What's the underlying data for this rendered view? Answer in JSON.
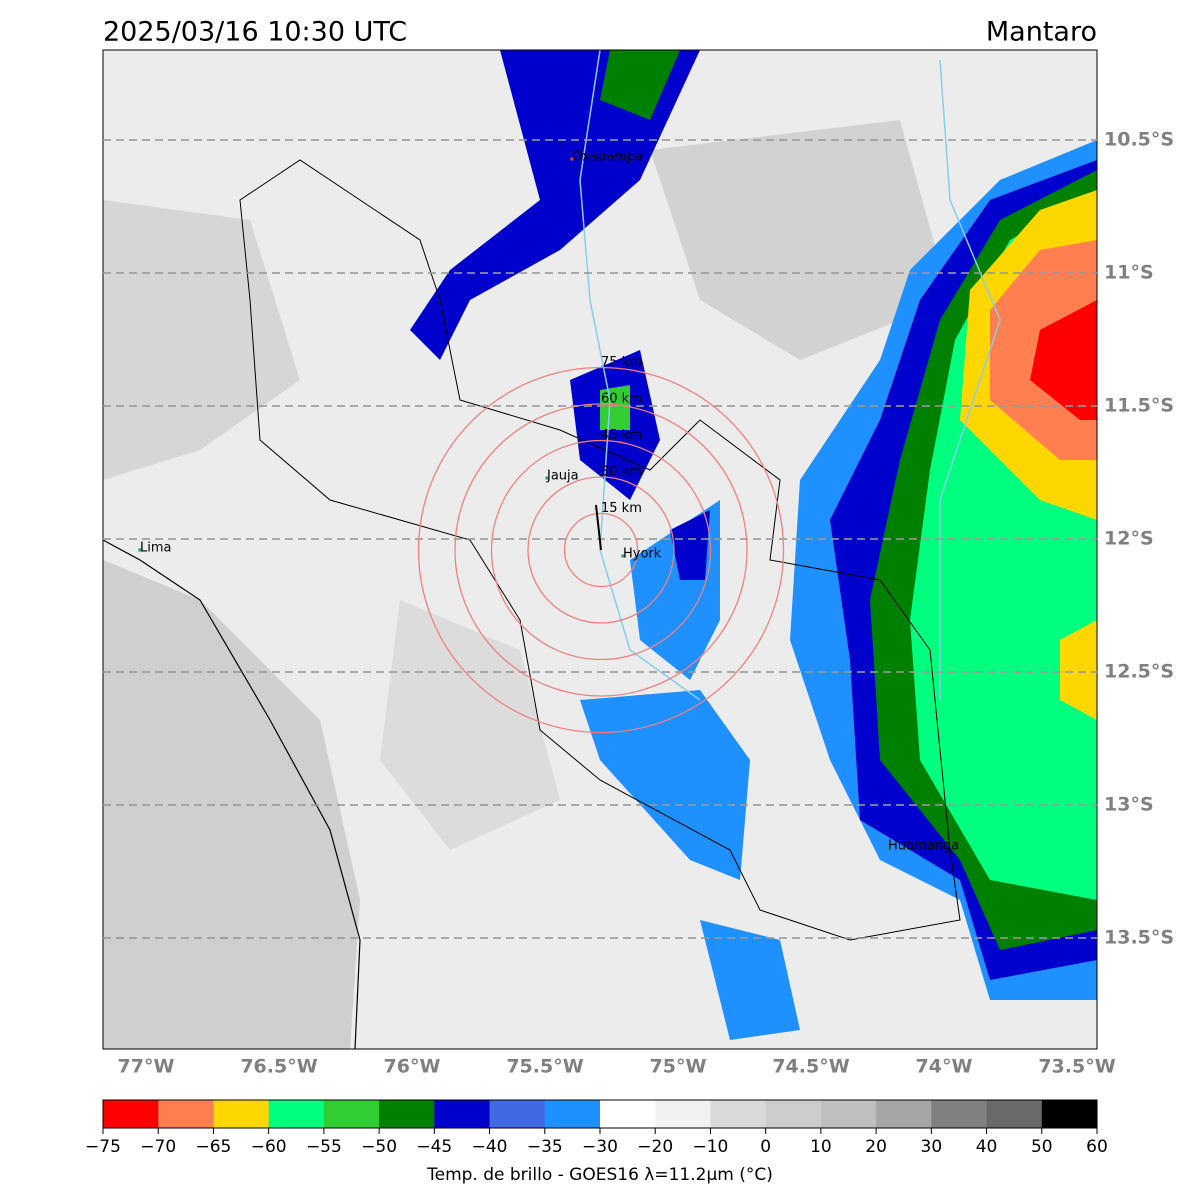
{
  "header": {
    "title": "2025/03/16 10:30 UTC",
    "region": "Mantaro"
  },
  "map": {
    "lat_labels": [
      "10.5°S",
      "11°S",
      "11.5°S",
      "12°S",
      "12.5°S",
      "13°S",
      "13.5°S"
    ],
    "lon_labels": [
      "77°W",
      "76.5°W",
      "76°W",
      "75.5°W",
      "75°W",
      "74.5°W",
      "74°W",
      "73.5°W"
    ],
    "places": [
      "Oxapampa",
      "Jauja",
      "Hyork",
      "Lima",
      "Huamanga"
    ],
    "rings": [
      "15 km",
      "30 km",
      "45 km",
      "60 km",
      "75 km"
    ]
  },
  "colorbar": {
    "ticks": [
      "−75",
      "−70",
      "−65",
      "−60",
      "−55",
      "−50",
      "−45",
      "−40",
      "−35",
      "−30",
      "−20",
      "−10",
      "0",
      "10",
      "20",
      "30",
      "40",
      "50",
      "60"
    ],
    "colors": [
      "#ff0000",
      "#ff7f50",
      "#ffd700",
      "#00ff7f",
      "#32cd32",
      "#008000",
      "#0000cd",
      "#4169e1",
      "#1e90ff",
      "#ffffff",
      "#f2f2f2",
      "#d9d9d9",
      "#cccccc",
      "#bfbfbf",
      "#a6a6a6",
      "#808080",
      "#696969",
      "#000000"
    ],
    "label": "Temp. de brillo - GOES16 λ=11.2μm (°C)"
  }
}
